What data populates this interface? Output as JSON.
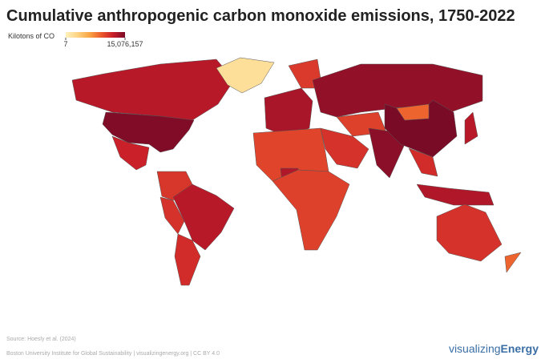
{
  "chart_data": {
    "type": "choropleth",
    "title": "Cumulative anthropogenic carbon monoxide emissions, 1750-2022",
    "legend_title": "Kilotons of CO",
    "colorbar": {
      "lim": [
        7,
        15076157
      ],
      "ticks": [
        7,
        {
          "value": 15076157,
          "label": "15,076,157"
        }
      ],
      "log": true,
      "colors": [
        "#fff2bd",
        "#fdd383",
        "#f9a545",
        "#ec5a2c",
        "#c81d2a",
        "#7a0b27"
      ]
    },
    "values": [
      1500000,
      40,
      12000000,
      700000,
      250000,
      1500000,
      300000,
      400000,
      2500000,
      200000,
      6000000,
      150000,
      300000,
      120000,
      2000000,
      150000,
      8000000,
      15076157,
      30000,
      400000,
      1500000,
      2000000,
      300000,
      30000
    ],
    "source": "Source: Hoesly et al. (2024)",
    "credit": "Boston University Institute for Global Sustainability | visualizingenergy.org | CC BY 4.0",
    "logo": {
      "light": "visualizing",
      "bold": "Energy"
    }
  }
}
